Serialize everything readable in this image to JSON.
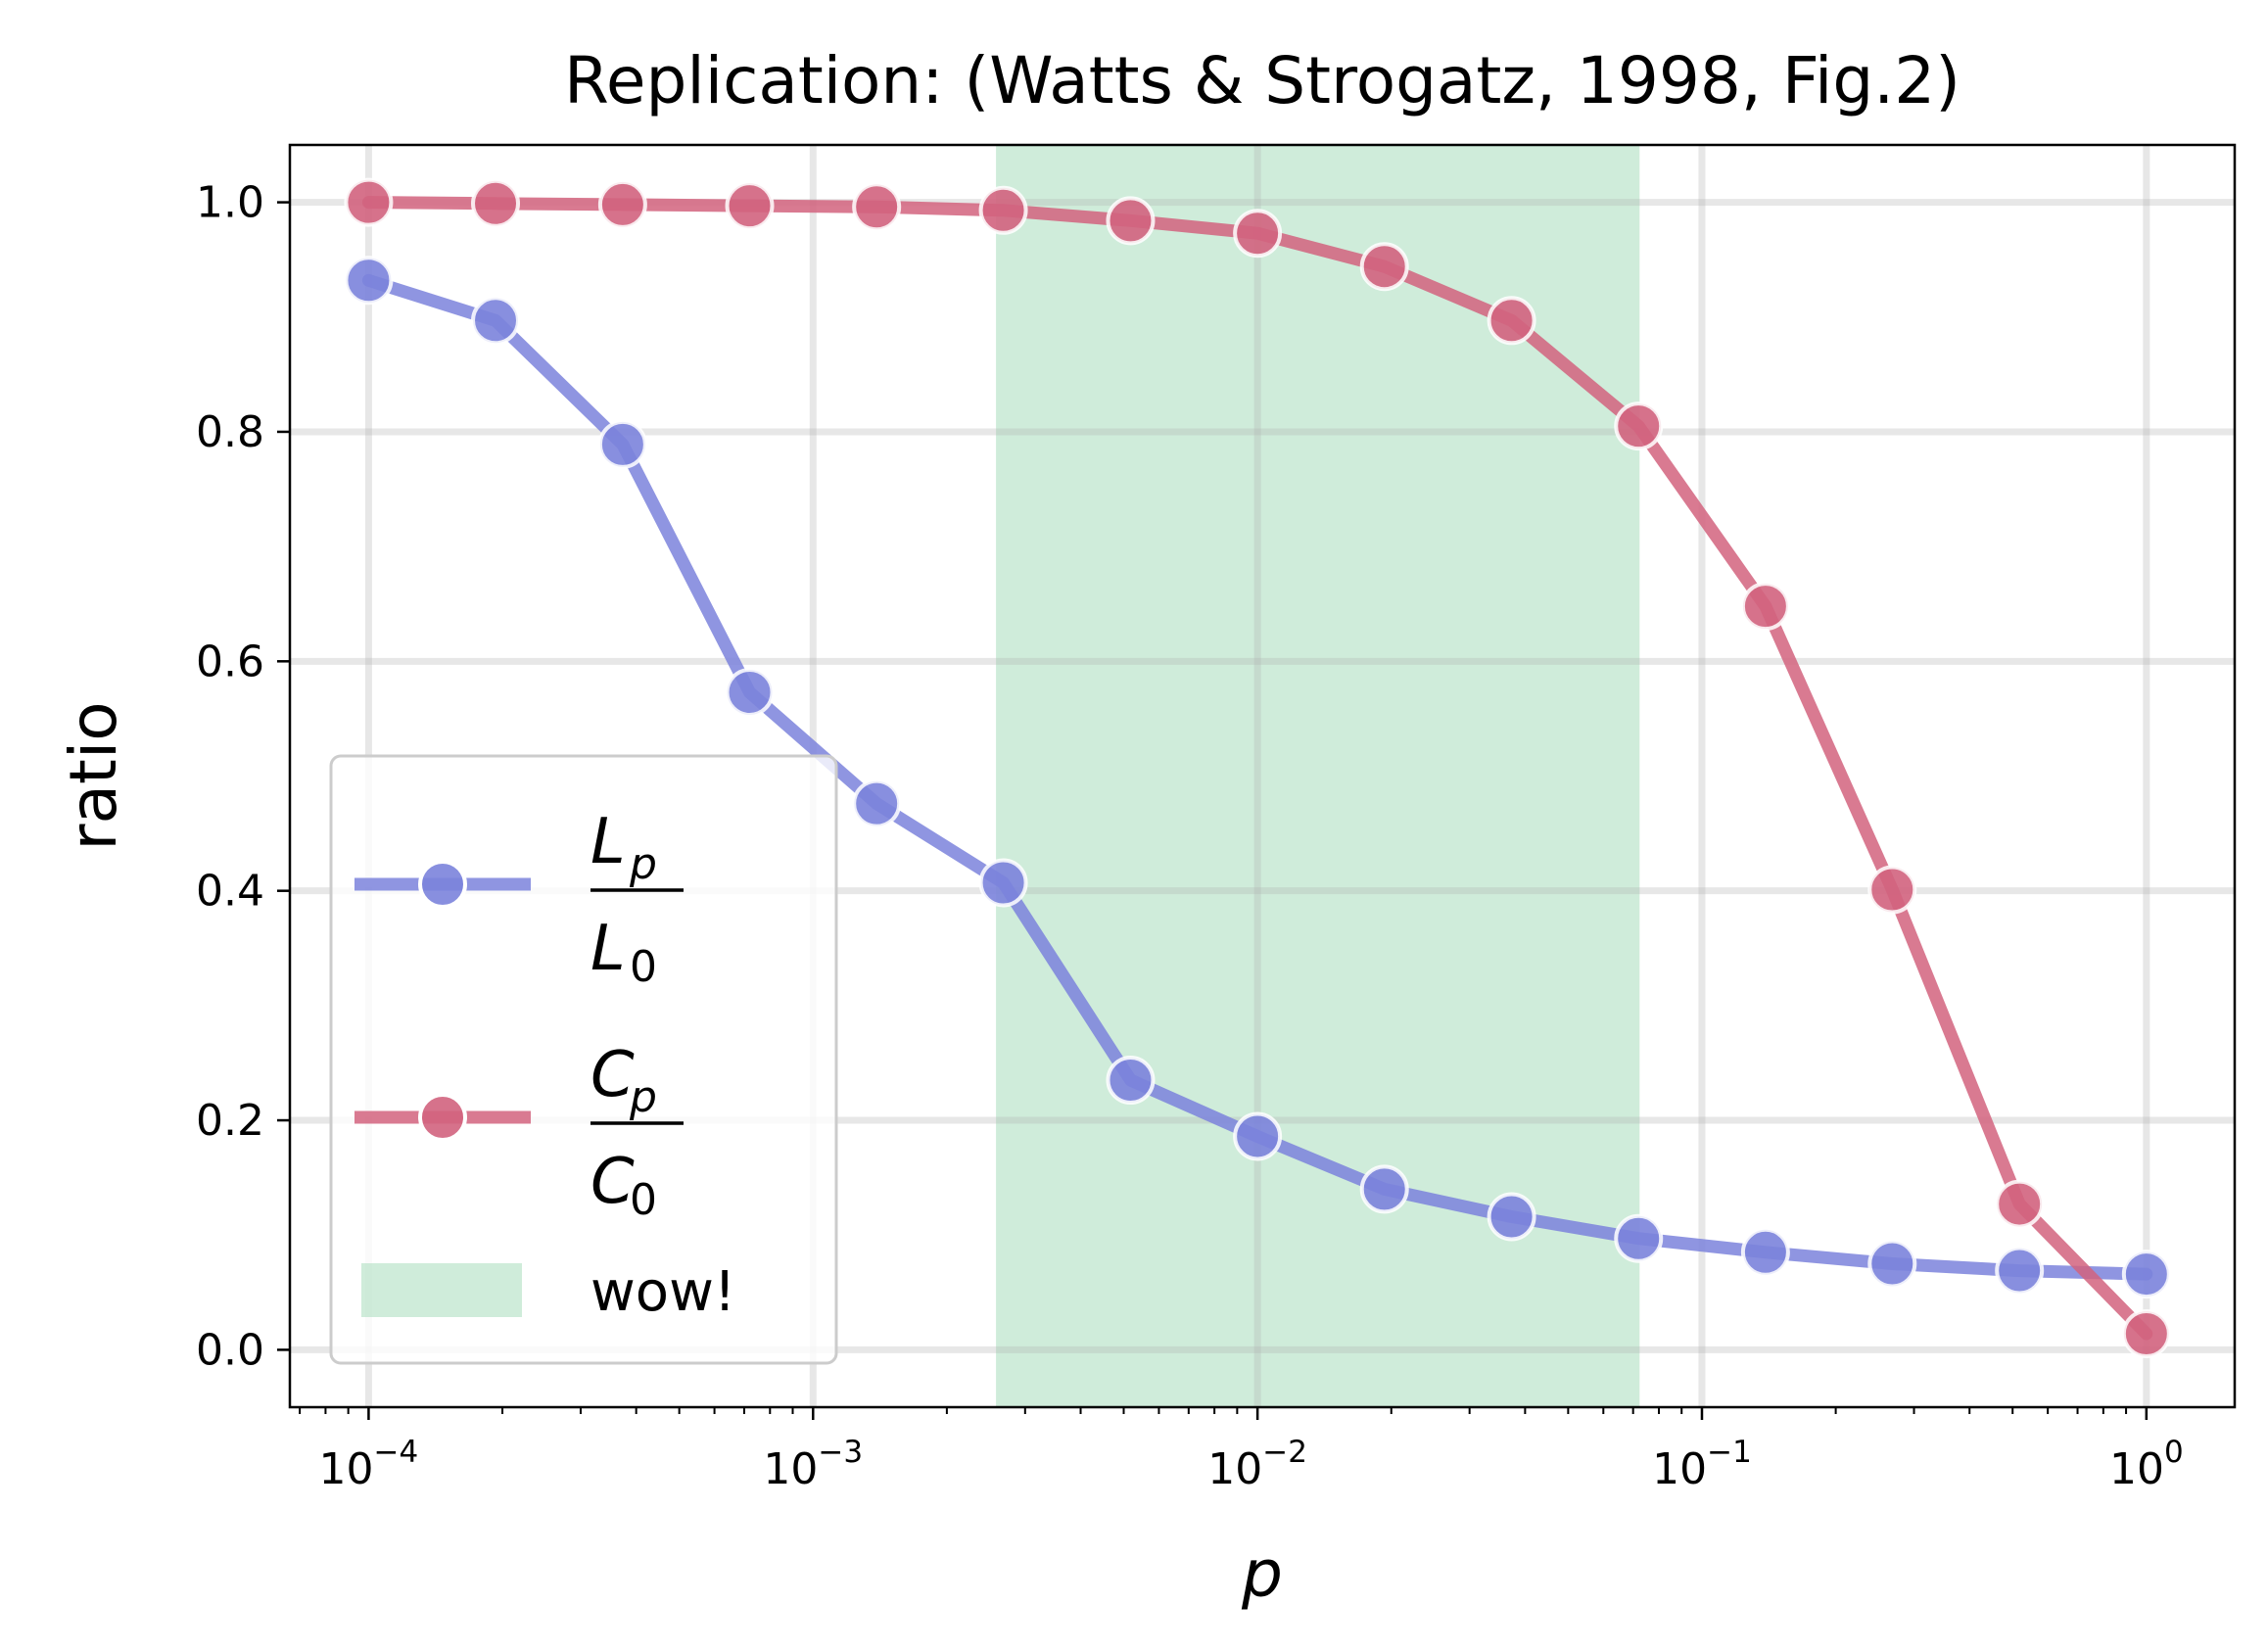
{
  "chart_data": {
    "type": "line",
    "title": "Replication: (Watts & Strogatz, 1998, Fig.2)",
    "xlabel": "p",
    "ylabel": "ratio",
    "xscale": "log",
    "xlim": [
      6.65e-05,
      1.58
    ],
    "ylim": [
      -0.05,
      1.05
    ],
    "xticks": [
      {
        "value": 0.0001,
        "base": "10",
        "exp": "−4"
      },
      {
        "value": 0.001,
        "base": "10",
        "exp": "−3"
      },
      {
        "value": 0.01,
        "base": "10",
        "exp": "−2"
      },
      {
        "value": 0.1,
        "base": "10",
        "exp": "−1"
      },
      {
        "value": 1,
        "base": "10",
        "exp": "0"
      }
    ],
    "yticks": [
      {
        "value": 0.0,
        "label": "0.0"
      },
      {
        "value": 0.2,
        "label": "0.2"
      },
      {
        "value": 0.4,
        "label": "0.4"
      },
      {
        "value": 0.6,
        "label": "0.6"
      },
      {
        "value": 0.8,
        "label": "0.8"
      },
      {
        "value": 1.0,
        "label": "1.0"
      }
    ],
    "grid": true,
    "legend_position": "lower-left",
    "x": [
      0.0001,
      0.000193,
      0.000373,
      0.00072,
      0.00139,
      0.00268,
      0.00518,
      0.01,
      0.0193,
      0.0373,
      0.072,
      0.139,
      0.268,
      0.518,
      1.0
    ],
    "series": [
      {
        "legend": {
          "num": "L",
          "num_sub": "p",
          "den": "L",
          "den_sub": "0"
        },
        "color": "#7b83dc",
        "values": [
          0.932,
          0.897,
          0.789,
          0.573,
          0.476,
          0.407,
          0.235,
          0.186,
          0.14,
          0.116,
          0.097,
          0.085,
          0.075,
          0.069,
          0.066
        ]
      },
      {
        "legend": {
          "num": "C",
          "num_sub": "p",
          "den": "C",
          "den_sub": "0"
        },
        "color": "#d2637e",
        "values": [
          1.0,
          0.999,
          0.998,
          0.997,
          0.996,
          0.993,
          0.984,
          0.973,
          0.944,
          0.897,
          0.805,
          0.648,
          0.401,
          0.127,
          0.014
        ]
      }
    ],
    "shaded_region": {
      "label": "wow!",
      "x_start": 0.00258,
      "x_end": 0.0724,
      "color": "#a8dcbc"
    }
  }
}
